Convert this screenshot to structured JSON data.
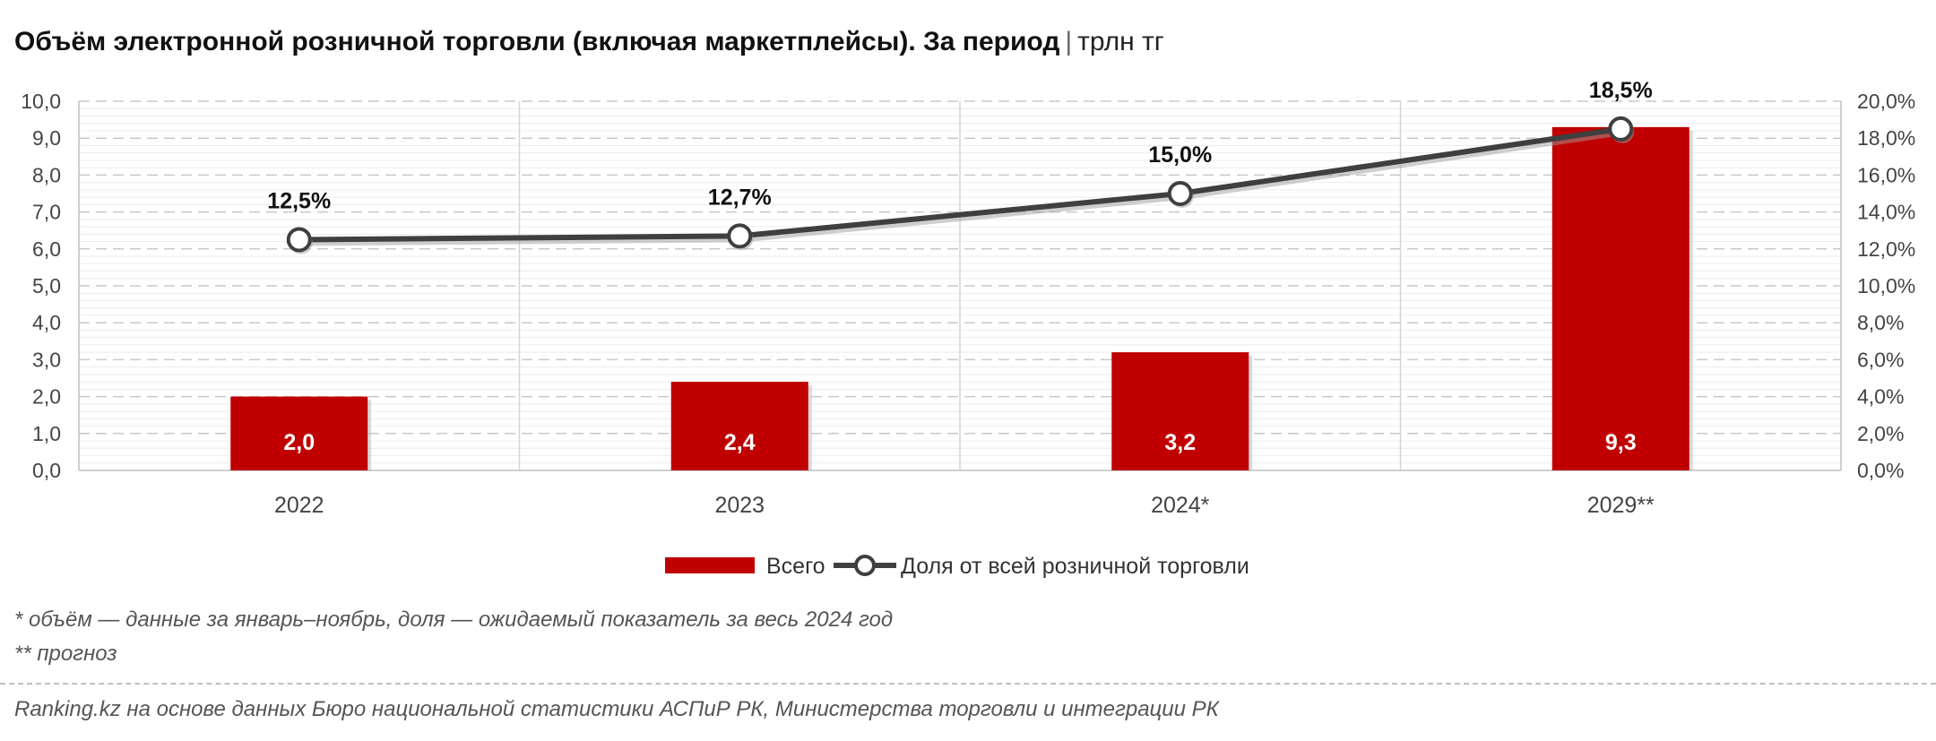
{
  "title": "Объём электронной розничной торговли (включая маркетплейсы). За период",
  "title_separator": "|",
  "unit": "трлн тг",
  "chart_data": {
    "type": "bar",
    "categories": [
      "2022",
      "2023",
      "2024*",
      "2029**"
    ],
    "series": [
      {
        "name": "Всего",
        "type": "bar",
        "axis": "left",
        "values": [
          2.0,
          2.4,
          3.2,
          9.3
        ],
        "labels": [
          "2,0",
          "2,4",
          "3,2",
          "9,3"
        ],
        "color": "#c00000"
      },
      {
        "name": "Доля от всей розничной торговли",
        "type": "line",
        "axis": "right",
        "values": [
          12.5,
          12.7,
          15.0,
          18.5
        ],
        "labels": [
          "12,5%",
          "12,7%",
          "15,0%",
          "18,5%"
        ],
        "color": "#3f3f3f"
      }
    ],
    "y_left": {
      "range": [
        0,
        10
      ],
      "ticks": [
        "0,0",
        "1,0",
        "2,0",
        "3,0",
        "4,0",
        "5,0",
        "6,0",
        "7,0",
        "8,0",
        "9,0",
        "10,0"
      ]
    },
    "y_right": {
      "range": [
        0,
        20
      ],
      "ticks": [
        "0,0%",
        "2,0%",
        "4,0%",
        "6,0%",
        "8,0%",
        "10,0%",
        "12,0%",
        "14,0%",
        "16,0%",
        "18,0%",
        "20,0%"
      ]
    },
    "grid": true,
    "legend_position": "bottom"
  },
  "notes": [
    "* объём — данные за январь–ноябрь, доля — ожидаемый показатель за весь 2024 год",
    "** прогноз"
  ],
  "source": "Ranking.kz на основе данных Бюро национальной статистики АСПиР РК, Министерства торговли и интеграции РК"
}
